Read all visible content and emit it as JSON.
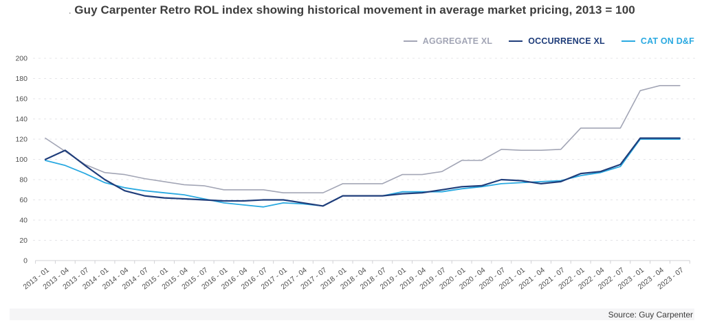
{
  "title_dot": ".",
  "title": "Guy Carpenter Retro ROL index showing historical movement in average market pricing, 2013 = 100",
  "source": "Source: Guy Carpenter",
  "colors": {
    "aggregate_xl": "#a2a5b5",
    "occurrence_xl": "#1f3d7a",
    "cat_on_df": "#29a9e1",
    "gridline": "#e4e4e8",
    "axis": "#d0d0d4",
    "tick_label": "#4d4d4d",
    "title_text": "#3d3d3d",
    "source_bg": "#f5f5f6"
  },
  "legend": {
    "items": [
      {
        "label": "AGGREGATE XL",
        "color": "#a2a5b5"
      },
      {
        "label": "OCCURRENCE XL",
        "color": "#1f3d7a"
      },
      {
        "label": "CAT ON D&F",
        "color": "#29a9e1"
      }
    ]
  },
  "chart_data": {
    "type": "line",
    "title": "Guy Carpenter Retro ROL index showing historical movement in average market pricing, 2013 = 100",
    "xlabel": "",
    "ylabel": "",
    "ylim": [
      0,
      200
    ],
    "yticks": [
      0,
      20,
      40,
      60,
      80,
      100,
      120,
      140,
      160,
      180,
      200
    ],
    "grid": true,
    "grid_style": "dashed",
    "legend_position": "top-right",
    "x": [
      "2013 - 01",
      "2013 - 04",
      "2013 - 07",
      "2014 - 01",
      "2014 - 04",
      "2014 - 07",
      "2015 - 01",
      "2015 - 04",
      "2015 - 07",
      "2016 - 01",
      "2016 - 04",
      "2016 - 07",
      "2017 - 01",
      "2017 - 04",
      "2017 - 07",
      "2018 - 01",
      "2018 - 04",
      "2018 - 07",
      "2019 - 01",
      "2019 - 04",
      "2019 - 07",
      "2020 - 01",
      "2020 - 04",
      "2020 - 07",
      "2021 - 01",
      "2021 - 04",
      "2021 - 07",
      "2022 - 01",
      "2022 - 04",
      "2022 - 07",
      "2023 - 01",
      "2023 - 04",
      "2023 - 07"
    ],
    "series": [
      {
        "name": "AGGREGATE XL",
        "color": "#a2a5b5",
        "width": 1.6,
        "values": [
          121,
          108,
          95,
          87,
          85,
          81,
          78,
          75,
          74,
          70,
          70,
          70,
          67,
          67,
          67,
          76,
          76,
          76,
          85,
          85,
          88,
          99,
          99,
          110,
          109,
          109,
          110,
          131,
          131,
          131,
          168,
          173,
          173
        ]
      },
      {
        "name": "CAT ON D&F",
        "color": "#29a9e1",
        "width": 1.8,
        "values": [
          99,
          94,
          86,
          77,
          72,
          69,
          67,
          65,
          61,
          57,
          55,
          53,
          57,
          56,
          54,
          64,
          64,
          64,
          68,
          68,
          68,
          71,
          73,
          76,
          77,
          78,
          79,
          84,
          87,
          93,
          120,
          120,
          120
        ]
      },
      {
        "name": "OCCURRENCE XL",
        "color": "#1f3d7a",
        "width": 2.2,
        "values": [
          100,
          109,
          94,
          80,
          69,
          64,
          62,
          61,
          60,
          59,
          59,
          60,
          60,
          57,
          54,
          64,
          64,
          64,
          66,
          67,
          70,
          73,
          74,
          80,
          79,
          76,
          78,
          86,
          88,
          95,
          121,
          121,
          121
        ]
      }
    ]
  }
}
